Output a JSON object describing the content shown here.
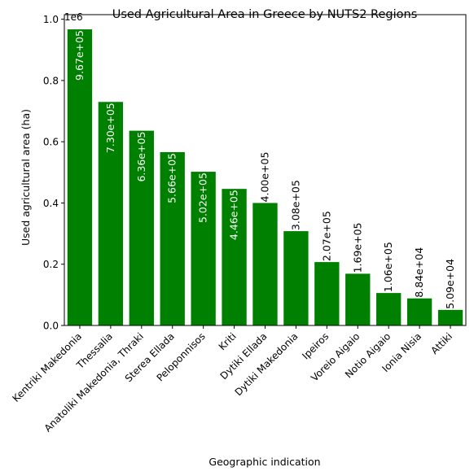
{
  "chart_data": {
    "type": "bar",
    "title": "Used Agricultural Area in Greece by NUTS2 Regions",
    "xlabel": "Geographic indication",
    "ylabel": "Used agricultural area (ha)",
    "y_multiplier_label": "1e6",
    "ylim": [
      0,
      1015000
    ],
    "yticks": [
      0.0,
      0.2,
      0.4,
      0.6,
      0.8,
      1.0
    ],
    "ytick_labels": [
      "0.0",
      "0.2",
      "0.4",
      "0.6",
      "0.8",
      "1.0"
    ],
    "grid": false,
    "bar_color": "#008000",
    "categories": [
      "Kentriki Makedonia",
      "Thessalia",
      "Anatoliki Makedonia, Thraki",
      "Sterea Ellada",
      "Peloponnisos",
      "Kriti",
      "Dytiki Ellada",
      "Dytiki Makedonia",
      "Ipeiros",
      "Voreio Aigaio",
      "Notio Aigaio",
      "Ionia Nisia",
      "Attiki"
    ],
    "values": [
      967000,
      730000,
      636000,
      566000,
      502000,
      446000,
      400000,
      308000,
      207000,
      169000,
      106000,
      88400,
      50900
    ],
    "data_labels": [
      "9.67e+05",
      "7.30e+05",
      "6.36e+05",
      "5.66e+05",
      "5.02e+05",
      "4.46e+05",
      "4.00e+05",
      "3.08e+05",
      "2.07e+05",
      "1.69e+05",
      "1.06e+05",
      "8.84e+04",
      "5.09e+04"
    ]
  }
}
